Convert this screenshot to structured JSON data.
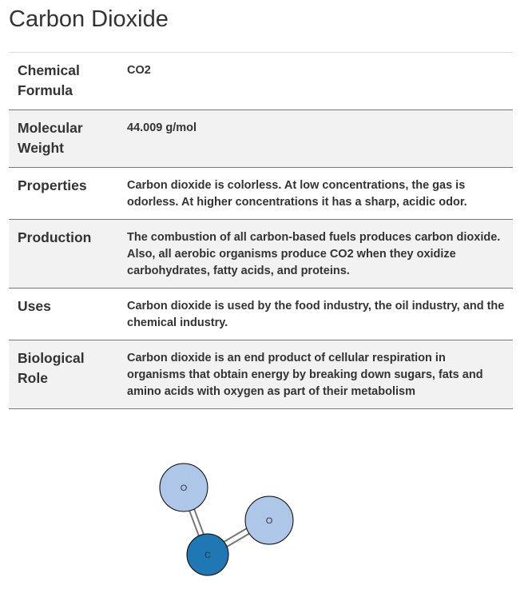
{
  "title": "Carbon Dioxide",
  "properties": [
    {
      "label": "Chemical Formula",
      "value": "CO2"
    },
    {
      "label": "Molecular Weight",
      "value": "44.009 g/mol"
    },
    {
      "label": "Properties",
      "value": "Carbon dioxide is colorless. At low concentrations, the gas is odorless. At higher concentrations it has a sharp, acidic odor."
    },
    {
      "label": "Production",
      "value": "The combustion of all carbon-based fuels produces carbon dioxide. Also, all aerobic organisms produce CO2 when they oxidize carbohydrates, fatty acids, and proteins."
    },
    {
      "label": "Uses",
      "value": "Carbon dioxide is used by the food industry, the oil industry, and the chemical industry."
    },
    {
      "label": "Biological Role",
      "value": "Carbon dioxide is an end product of cellular respiration in organisms that obtain energy by breaking down sugars, fats and amino acids with oxygen as part of their metabolism"
    }
  ],
  "molecule": {
    "atoms": [
      {
        "symbol": "O",
        "color": "#aec7e8"
      },
      {
        "symbol": "O",
        "color": "#aec7e8"
      },
      {
        "symbol": "C",
        "color": "#1f77b4"
      }
    ],
    "bond_color": "#777777"
  }
}
